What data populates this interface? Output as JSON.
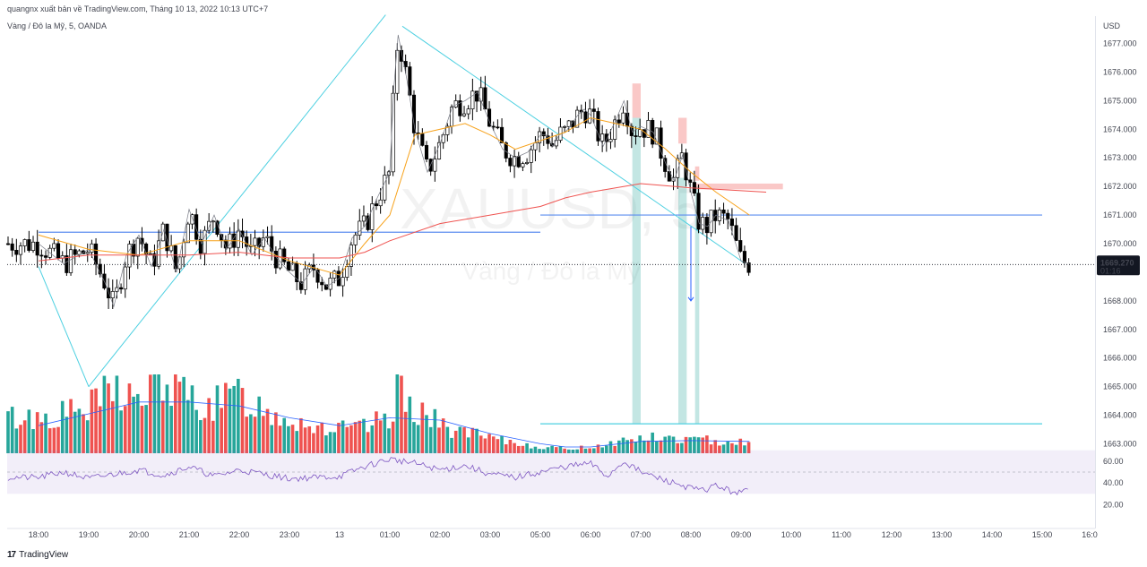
{
  "header": {
    "publisher_line": "quangnx xuất bản về TradingView.com, Tháng 10 13, 2022 10:13 UTC+7",
    "symbol_line": "Vàng / Đô la Mỹ, 5, OANDA"
  },
  "watermark": {
    "symbol": "XAUUSD, 5",
    "description": "Vàng / Đô la Mỹ"
  },
  "footer": {
    "brand": "TradingView",
    "logo_text": "17"
  },
  "colors": {
    "up_candle": "#ffffff",
    "down_candle": "#000000",
    "up_hl": "#2962ff",
    "down_hl": "#f7a21b",
    "vol_up": "#26a69a",
    "vol_down": "#ef5350",
    "ma_volume": "#2962ff",
    "ema_fast": "#f7a21b",
    "ema_slow": "#ef5350",
    "rsi": "#7e57c2",
    "trend": "#4dd0e1",
    "hline": "#5b8def"
  },
  "chart_data": {
    "type": "candlestick",
    "symbol": "XAUUSD",
    "interval": "5",
    "currency_label": "USD",
    "price_axis_ticks": [
      "1677.000",
      "1676.000",
      "1675.000",
      "1674.000",
      "1673.000",
      "1672.000",
      "1671.000",
      "1670.000",
      "1669.000",
      "1668.000",
      "1667.000",
      "1666.000",
      "1665.000",
      "1664.000",
      "1663.000"
    ],
    "ylim": [
      1662.5,
      1677.7
    ],
    "time_axis_ticks": [
      "18:00",
      "19:00",
      "20:00",
      "21:00",
      "22:00",
      "23:00",
      "13",
      "01:00",
      "02:00",
      "03:00",
      "05:00",
      "06:00",
      "07:00",
      "08:00",
      "09:00",
      "10:00",
      "11:00",
      "12:00",
      "13:00",
      "14:00",
      "15:00",
      "16:0"
    ],
    "last_price": {
      "value": "1669.270",
      "countdown": "01:16"
    },
    "anchors_price": [
      [
        "18:00",
        1670.0
      ],
      [
        "18:30",
        1669.3
      ],
      [
        "19:00",
        1669.8
      ],
      [
        "19:20",
        1668.6
      ],
      [
        "19:30",
        1667.8
      ],
      [
        "19:45",
        1669.6
      ],
      [
        "20:00",
        1670.3
      ],
      [
        "20:15",
        1669.2
      ],
      [
        "20:30",
        1670.5
      ],
      [
        "20:45",
        1669.0
      ],
      [
        "21:00",
        1671.2
      ],
      [
        "21:15",
        1670.0
      ],
      [
        "21:30",
        1671.0
      ],
      [
        "21:45",
        1669.8
      ],
      [
        "22:00",
        1670.5
      ],
      [
        "22:15",
        1669.6
      ],
      [
        "22:30",
        1670.2
      ],
      [
        "22:45",
        1669.5
      ],
      [
        "23:00",
        1669.0
      ],
      [
        "23:15",
        1668.6
      ],
      [
        "23:30",
        1669.2
      ],
      [
        "23:45",
        1668.5
      ],
      [
        "00:00",
        1668.8
      ],
      [
        "00:15",
        1670.2
      ],
      [
        "00:30",
        1670.6
      ],
      [
        "00:45",
        1671.6
      ],
      [
        "01:00",
        1672.5
      ],
      [
        "01:05",
        1675.5
      ],
      [
        "01:10",
        1677.3
      ],
      [
        "01:20",
        1675.8
      ],
      [
        "01:30",
        1674.0
      ],
      [
        "01:45",
        1672.5
      ],
      [
        "02:00",
        1673.5
      ],
      [
        "02:15",
        1674.8
      ],
      [
        "02:30",
        1675.0
      ],
      [
        "02:45",
        1675.3
      ],
      [
        "03:00",
        1674.2
      ],
      [
        "03:15",
        1673.3
      ],
      [
        "03:30",
        1673.0
      ],
      [
        "03:45",
        1673.2
      ],
      [
        "05:00",
        1673.8
      ],
      [
        "05:15",
        1673.8
      ],
      [
        "05:30",
        1673.4
      ],
      [
        "05:45",
        1673.8
      ],
      [
        "06:00",
        1673.9
      ],
      [
        "06:15",
        1674.2
      ],
      [
        "06:30",
        1674.5
      ],
      [
        "06:45",
        1674.7
      ],
      [
        "07:00",
        1674.5
      ],
      [
        "07:15",
        1673.4
      ],
      [
        "07:30",
        1674.3
      ],
      [
        "07:40",
        1675.0
      ],
      [
        "07:50",
        1673.9
      ],
      [
        "08:00",
        1674.1
      ],
      [
        "08:15",
        1673.9
      ],
      [
        "08:30",
        1672.8
      ],
      [
        "08:40",
        1672.2
      ],
      [
        "08:50",
        1673.1
      ],
      [
        "09:00",
        1671.8
      ],
      [
        "09:10",
        1670.7
      ],
      [
        "09:20",
        1670.6
      ],
      [
        "09:30",
        1671.0
      ],
      [
        "09:45",
        1670.8
      ],
      [
        "10:00",
        1669.4
      ],
      [
        "10:10",
        1669.3
      ]
    ],
    "indicators": {
      "ema_fast": {
        "color": "#f7a21b",
        "anchors": [
          [
            "18:00",
            1670.3
          ],
          [
            "19:00",
            1669.8
          ],
          [
            "20:00",
            1669.6
          ],
          [
            "21:00",
            1670.1
          ],
          [
            "22:00",
            1670.1
          ],
          [
            "23:00",
            1669.4
          ],
          [
            "00:00",
            1668.9
          ],
          [
            "00:30",
            1670.0
          ],
          [
            "01:00",
            1671.0
          ],
          [
            "01:30",
            1673.8
          ],
          [
            "02:30",
            1674.2
          ],
          [
            "03:00",
            1673.8
          ],
          [
            "03:30",
            1673.3
          ],
          [
            "05:00",
            1673.6
          ],
          [
            "06:00",
            1673.9
          ],
          [
            "07:00",
            1674.4
          ],
          [
            "07:30",
            1674.2
          ],
          [
            "08:00",
            1674.0
          ],
          [
            "08:30",
            1673.3
          ],
          [
            "09:00",
            1672.5
          ],
          [
            "09:30",
            1671.8
          ],
          [
            "10:10",
            1671.0
          ]
        ]
      },
      "ema_slow": {
        "color": "#ef5350",
        "anchors": [
          [
            "18:00",
            1669.4
          ],
          [
            "19:00",
            1669.6
          ],
          [
            "20:00",
            1669.6
          ],
          [
            "21:00",
            1669.6
          ],
          [
            "22:00",
            1669.7
          ],
          [
            "23:00",
            1669.5
          ],
          [
            "00:00",
            1669.5
          ],
          [
            "00:30",
            1669.7
          ],
          [
            "01:00",
            1670.1
          ],
          [
            "02:00",
            1670.7
          ],
          [
            "03:00",
            1671.0
          ],
          [
            "05:00",
            1671.3
          ],
          [
            "06:00",
            1671.6
          ],
          [
            "07:00",
            1671.8
          ],
          [
            "08:00",
            1672.1
          ],
          [
            "09:00",
            1671.95
          ],
          [
            "09:30",
            1671.9
          ],
          [
            "10:30",
            1671.8
          ]
        ]
      },
      "trendlines": [
        {
          "from": [
            "18:00",
            1669.2
          ],
          "to": [
            "19:00",
            1665.0
          ]
        },
        {
          "from": [
            "19:00",
            1665.0
          ],
          "to": [
            "00:55",
            1678.0
          ]
        },
        {
          "from": [
            "01:15",
            1677.6
          ],
          "to": [
            "10:05",
            1669.3
          ]
        }
      ],
      "horizontal_lines": [
        {
          "price": 1670.4,
          "from": "18:00",
          "to": "05:00",
          "color": "#5b8def"
        },
        {
          "price": 1671.0,
          "from": "05:00",
          "to": "16:00",
          "color": "#5b8def"
        },
        {
          "price": 1663.7,
          "from": "05:00",
          "to": "16:00",
          "color": "#4dd0e1"
        }
      ],
      "zones": [
        {
          "type": "supply",
          "from": "07:50",
          "to": "08:00",
          "top": 1675.6,
          "bottom": 1674.4
        },
        {
          "type": "supply",
          "from": "08:45",
          "to": "08:55",
          "top": 1674.4,
          "bottom": 1673.5
        },
        {
          "type": "supply",
          "from": "09:05",
          "to": "09:10",
          "top": 1672.7,
          "bottom": 1672.2
        },
        {
          "type": "supply",
          "from": "09:05",
          "to": "10:50",
          "top": 1672.1,
          "bottom": 1671.9
        },
        {
          "type": "demand",
          "from": "07:50",
          "to": "08:00",
          "top": 1674.4,
          "bottom": 1663.7
        },
        {
          "type": "demand",
          "from": "08:45",
          "to": "08:55",
          "top": 1672.3,
          "bottom": 1663.7
        },
        {
          "type": "demand",
          "from": "09:05",
          "to": "09:10",
          "top": 1672.0,
          "bottom": 1663.7
        }
      ],
      "arrow": {
        "x": "09:00",
        "from_price": 1670.6,
        "to_price": 1668.0
      }
    },
    "volume": {
      "anchors": [
        [
          "18:00",
          0.45
        ],
        [
          "19:00",
          0.55
        ],
        [
          "19:30",
          0.85
        ],
        [
          "20:00",
          0.65
        ],
        [
          "20:30",
          0.9
        ],
        [
          "21:00",
          0.7
        ],
        [
          "21:30",
          0.6
        ],
        [
          "22:00",
          0.75
        ],
        [
          "22:30",
          0.55
        ],
        [
          "23:00",
          0.45
        ],
        [
          "23:30",
          0.35
        ],
        [
          "00:00",
          0.3
        ],
        [
          "00:30",
          0.32
        ],
        [
          "01:00",
          0.45
        ],
        [
          "01:10",
          0.9
        ],
        [
          "01:30",
          0.6
        ],
        [
          "02:00",
          0.35
        ],
        [
          "03:00",
          0.18
        ],
        [
          "05:00",
          0.08
        ],
        [
          "06:00",
          0.06
        ],
        [
          "07:00",
          0.08
        ],
        [
          "08:00",
          0.2
        ],
        [
          "09:00",
          0.17
        ],
        [
          "10:10",
          0.15
        ]
      ],
      "ma_anchors": [
        [
          "18:00",
          0.35
        ],
        [
          "19:00",
          0.5
        ],
        [
          "20:00",
          0.65
        ],
        [
          "21:00",
          0.65
        ],
        [
          "22:00",
          0.6
        ],
        [
          "23:00",
          0.45
        ],
        [
          "00:00",
          0.35
        ],
        [
          "01:00",
          0.45
        ],
        [
          "02:00",
          0.42
        ],
        [
          "03:00",
          0.25
        ],
        [
          "05:00",
          0.12
        ],
        [
          "06:00",
          0.08
        ],
        [
          "07:00",
          0.08
        ],
        [
          "08:00",
          0.15
        ],
        [
          "09:00",
          0.16
        ],
        [
          "10:10",
          0.15
        ]
      ]
    },
    "rsi": {
      "ticks": [
        "60.00",
        "40.00",
        "20.00"
      ],
      "band": [
        30,
        70
      ],
      "ylim": [
        10,
        70
      ],
      "anchors": [
        [
          "18:00",
          45
        ],
        [
          "18:30",
          50
        ],
        [
          "19:00",
          44
        ],
        [
          "19:30",
          48
        ],
        [
          "20:00",
          52
        ],
        [
          "20:30",
          47
        ],
        [
          "21:00",
          55
        ],
        [
          "21:30",
          46
        ],
        [
          "22:00",
          52
        ],
        [
          "22:30",
          48
        ],
        [
          "23:00",
          44
        ],
        [
          "23:30",
          45
        ],
        [
          "00:00",
          46
        ],
        [
          "00:30",
          55
        ],
        [
          "01:00",
          62
        ],
        [
          "01:30",
          58
        ],
        [
          "02:00",
          52
        ],
        [
          "02:30",
          56
        ],
        [
          "03:00",
          48
        ],
        [
          "03:30",
          45
        ],
        [
          "05:00",
          50
        ],
        [
          "06:00",
          55
        ],
        [
          "07:00",
          58
        ],
        [
          "07:20",
          46
        ],
        [
          "07:40",
          60
        ],
        [
          "08:00",
          50
        ],
        [
          "08:30",
          42
        ],
        [
          "08:45",
          39
        ],
        [
          "09:00",
          35
        ],
        [
          "09:15",
          33
        ],
        [
          "09:30",
          38
        ],
        [
          "09:45",
          33
        ],
        [
          "10:00",
          31
        ],
        [
          "10:10",
          34
        ]
      ]
    }
  }
}
